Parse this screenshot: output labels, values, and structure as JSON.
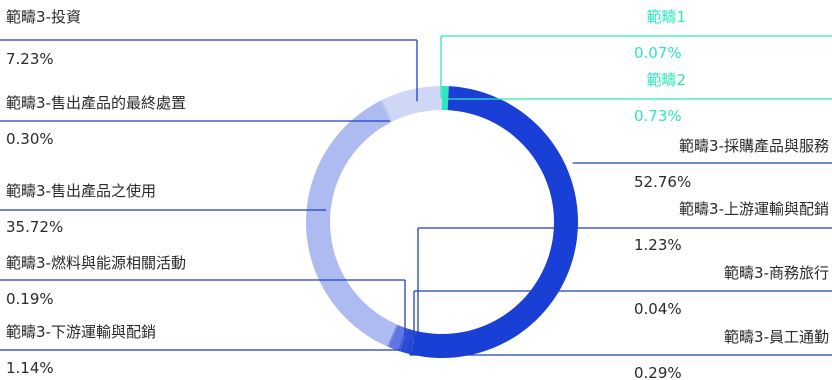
{
  "chart_data": {
    "type": "donut",
    "slices": [
      {
        "name": "範疇1",
        "label": "0.07%",
        "value": 0.07,
        "color": "#2ee6c0"
      },
      {
        "name": "範疇2",
        "label": "0.73%",
        "value": 0.73,
        "color": "#2ee6c0"
      },
      {
        "name": "範疇3-採購產品與服務",
        "label": "52.76%",
        "value": 52.76,
        "color": "#1a3fd6"
      },
      {
        "name": "範疇3-上游運輸與配銷",
        "label": "1.23%",
        "value": 1.23,
        "color": "#2a4ad8"
      },
      {
        "name": "範疇3-商務旅行",
        "label": "0.04%",
        "value": 0.04,
        "color": "#3552da"
      },
      {
        "name": "範疇3-員工通勤",
        "label": "0.29%",
        "value": 0.29,
        "color": "#3d5bdc"
      },
      {
        "name": "範疇3-下游運輸與配銷",
        "label": "1.14%",
        "value": 1.14,
        "color": "#5d76e3"
      },
      {
        "name": "範疇3-燃料與能源相關活動",
        "label": "0.19%",
        "value": 0.19,
        "color": "#7488e7"
      },
      {
        "name": "範疇3-售出產品之使用",
        "label": "35.72%",
        "value": 35.72,
        "color": "#aebbf0"
      },
      {
        "name": "範疇3-售出產品的最終處置",
        "label": "0.30%",
        "value": 0.3,
        "color": "#b8c4f2"
      },
      {
        "name": "範疇3-投資",
        "label": "7.23%",
        "value": 7.23,
        "color": "#cfd7f7"
      }
    ],
    "line_color_dark": "#1f3fbf",
    "line_color_light": "#2ee6c0",
    "text_color_dark": "#2a2a2a"
  }
}
